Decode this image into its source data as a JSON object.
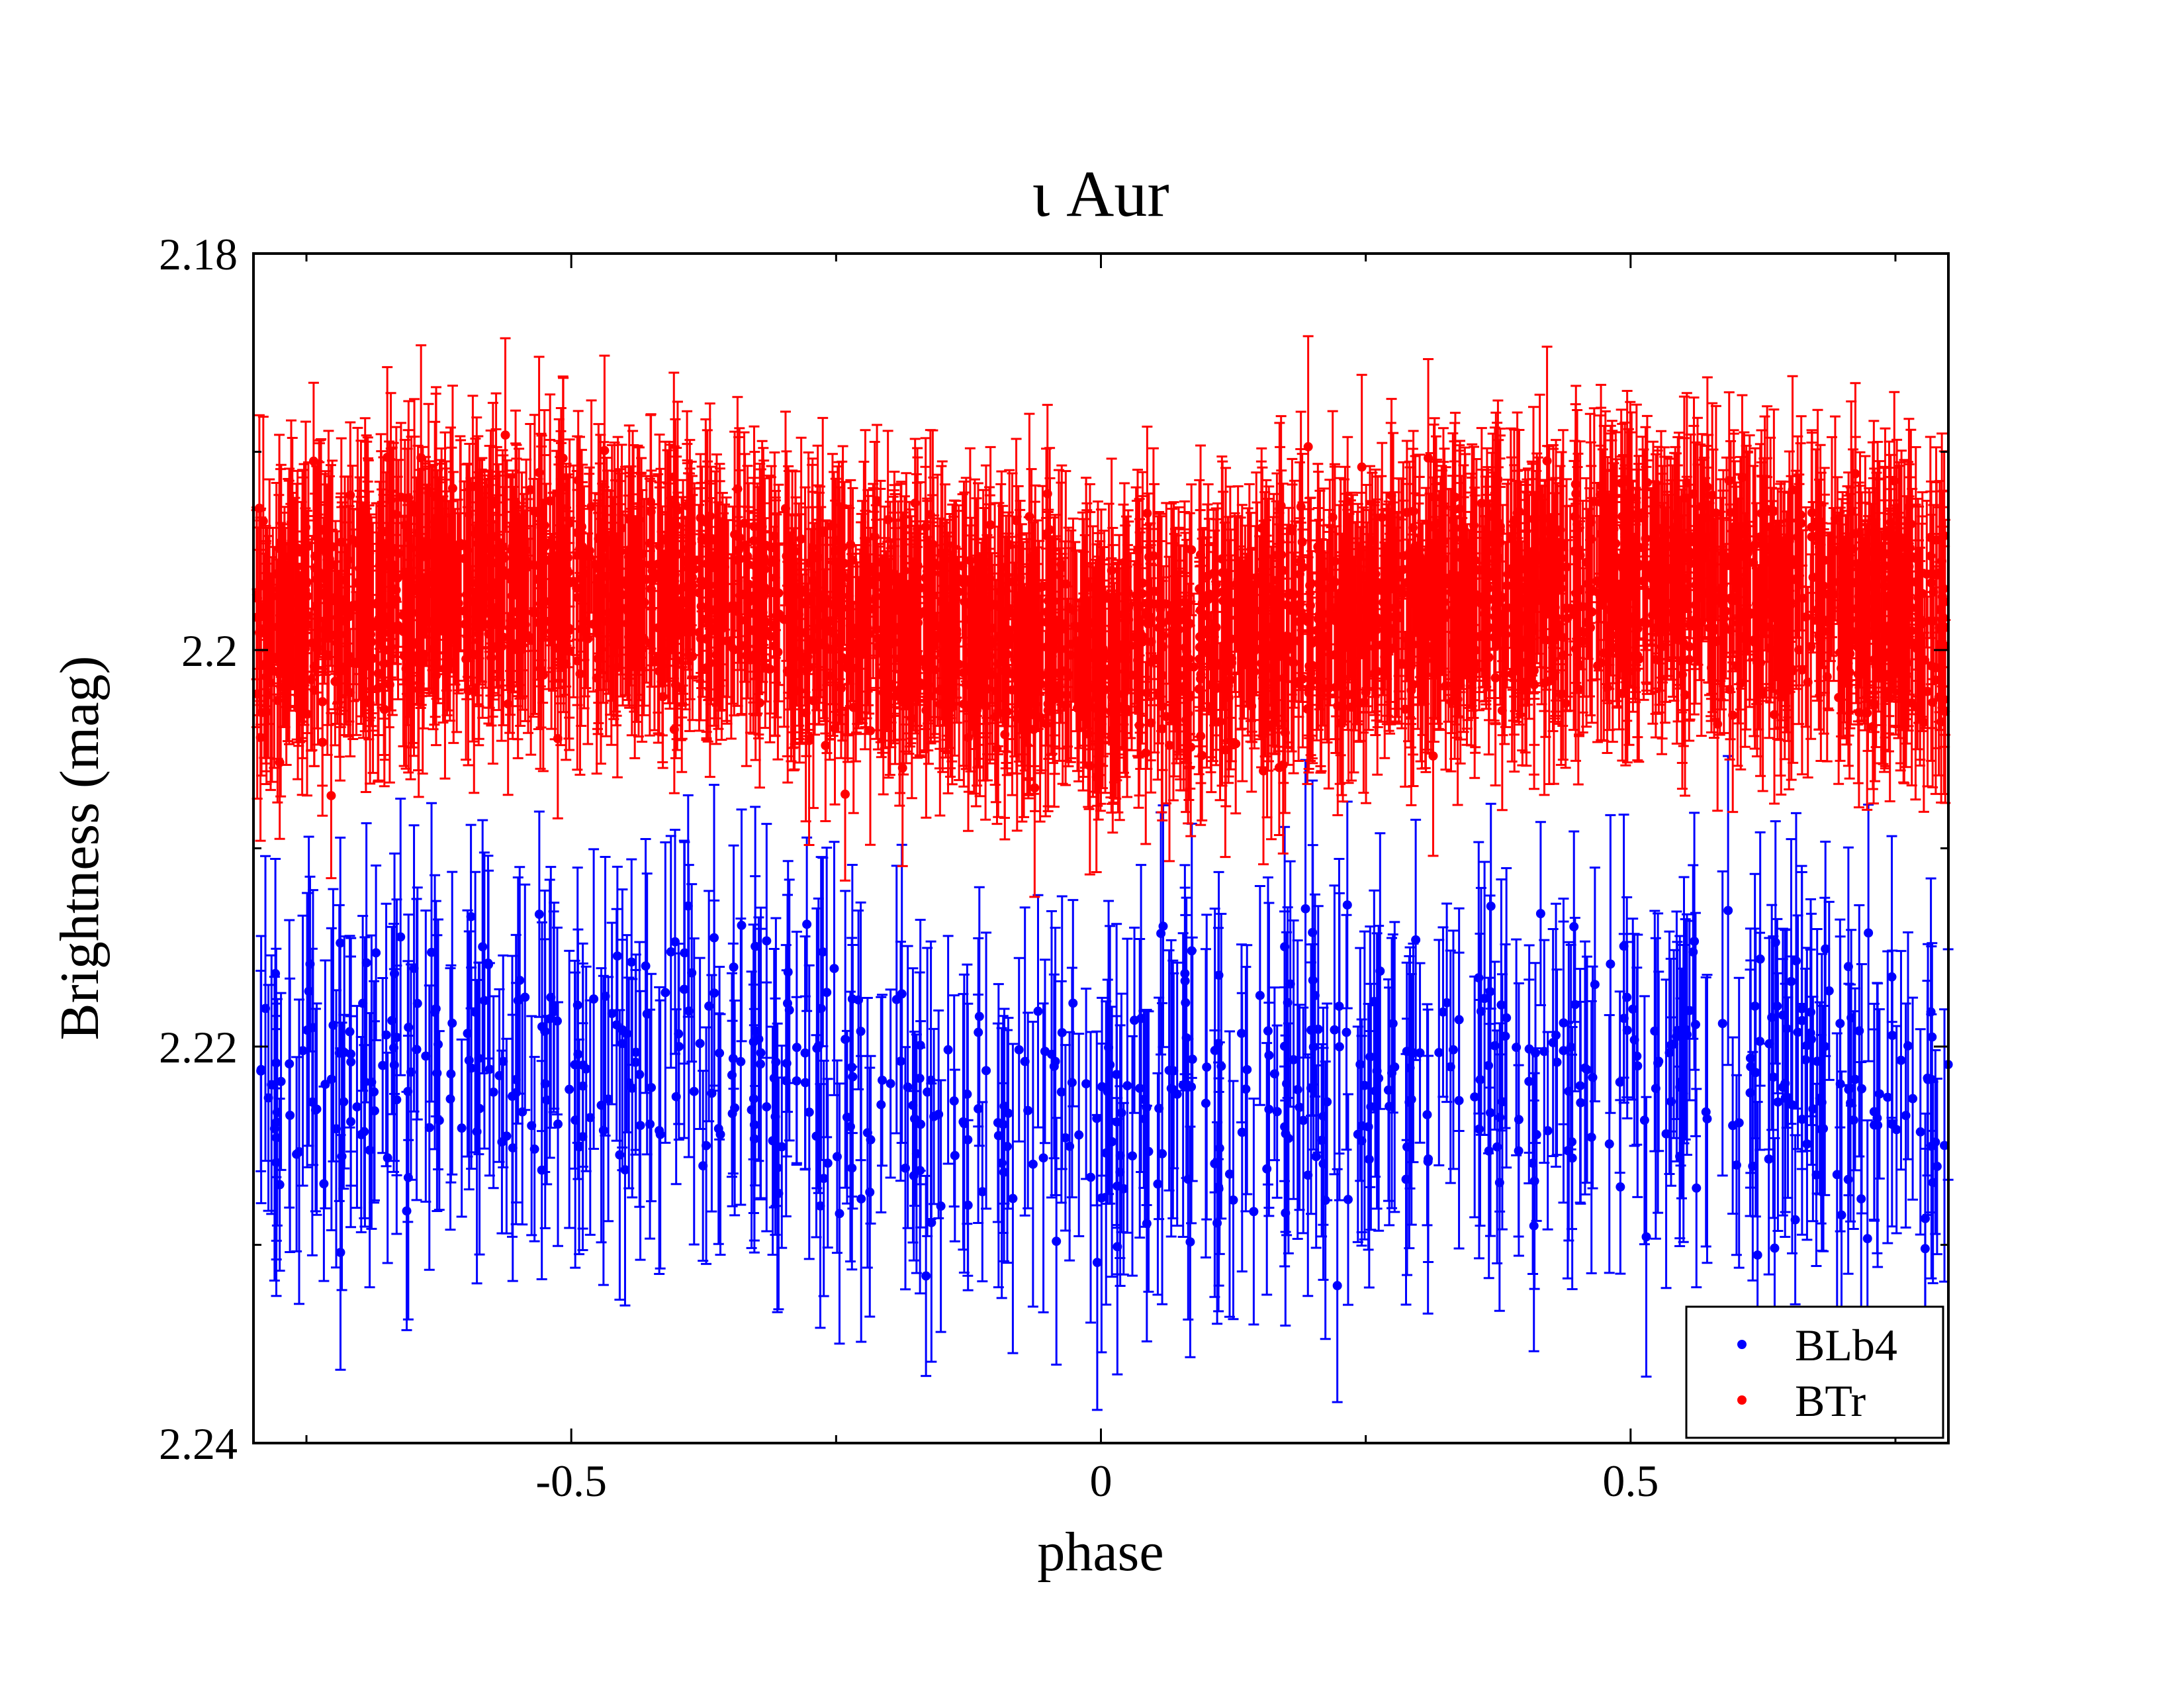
{
  "chart_data": {
    "type": "scatter",
    "title": "ι Aur",
    "xlabel": "phase",
    "ylabel": "Brightness (mag)",
    "xlim": [
      -0.8,
      0.8
    ],
    "ylim": [
      2.18,
      2.24
    ],
    "y_inverted": true,
    "x_ticks": [
      -0.5,
      0,
      0.5
    ],
    "x_tick_labels": [
      "-0.5",
      "0",
      "0.5"
    ],
    "y_ticks": [
      2.18,
      2.2,
      2.22,
      2.24
    ],
    "y_tick_labels": [
      "2.18",
      "2.2",
      "2.22",
      "2.24"
    ],
    "x_minor_ticks": [
      -0.75,
      -0.25,
      0.25,
      0.75
    ],
    "y_minor_ticks": [
      2.19,
      2.21,
      2.23
    ],
    "legend": {
      "position": "bottom-right",
      "entries": [
        "BLb4",
        "BTr"
      ]
    },
    "series": [
      {
        "name": "BLb4",
        "color": "#0000ff",
        "n_points": 640,
        "model": "mean 2.2205 mag; shallow dip near phase 0 (~2.2235 at minimum), periodic with period 1.0 in phase",
        "mean_mag": 2.2205,
        "dip_depth": 0.003,
        "scatter_sd": 0.0035,
        "typical_error": 0.006
      },
      {
        "name": "BTr",
        "color": "#ff0000",
        "n_points": 2600,
        "model": "mean 2.1965 mag; dip near phase 0 (~2.2 at minimum), periodic with period 1.0 in phase",
        "mean_mag": 2.1965,
        "dip_depth": 0.0035,
        "scatter_sd": 0.0025,
        "typical_error": 0.0045
      }
    ]
  }
}
